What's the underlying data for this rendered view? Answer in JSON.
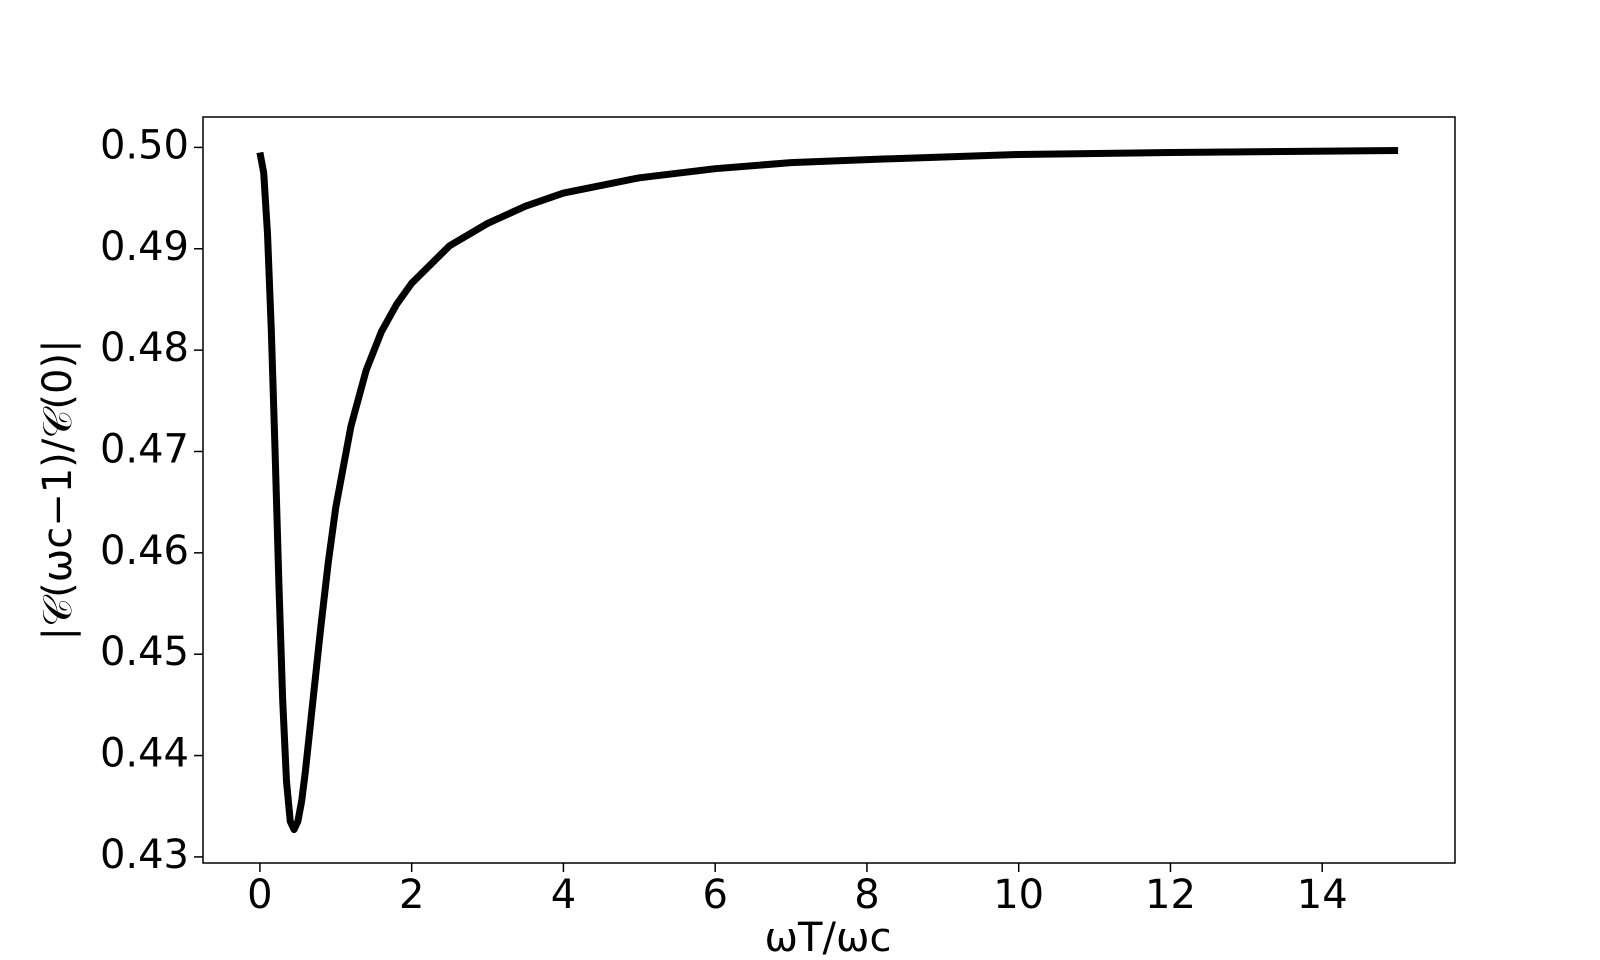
{
  "chart_data": {
    "type": "line",
    "xlabel": "ωT/ωc",
    "ylabel": "|𝒞(ωc−1)/𝒞(0)|",
    "x": [
      0,
      0.05,
      0.1,
      0.15,
      0.2,
      0.25,
      0.3,
      0.35,
      0.4,
      0.45,
      0.5,
      0.55,
      0.6,
      0.7,
      0.8,
      0.9,
      1.0,
      1.2,
      1.4,
      1.6,
      1.8,
      2,
      2.5,
      3,
      3.5,
      4,
      5,
      6,
      7,
      8,
      10,
      12,
      15
    ],
    "series": [
      {
        "color": "#000000",
        "values": [
          0.4995,
          0.4975,
          0.4915,
          0.482,
          0.47,
          0.457,
          0.4455,
          0.4375,
          0.4335,
          0.4327,
          0.4335,
          0.4355,
          0.4385,
          0.4455,
          0.4525,
          0.459,
          0.4645,
          0.4725,
          0.478,
          0.4818,
          0.4845,
          0.4866,
          0.4903,
          0.4925,
          0.4942,
          0.4955,
          0.497,
          0.4979,
          0.4985,
          0.4988,
          0.4993,
          0.4995,
          0.4997
        ]
      }
    ],
    "xlim": [
      -0.75,
      15.75
    ],
    "ylim": [
      0.4294,
      0.503
    ],
    "xticks": [
      0,
      2,
      4,
      6,
      8,
      10,
      12,
      14
    ],
    "yticks": [
      0.43,
      0.44,
      0.45,
      0.46,
      0.47,
      0.48,
      0.49,
      {
        "value": 0.5,
        "label": "0.50"
      }
    ],
    "grid": false
  }
}
